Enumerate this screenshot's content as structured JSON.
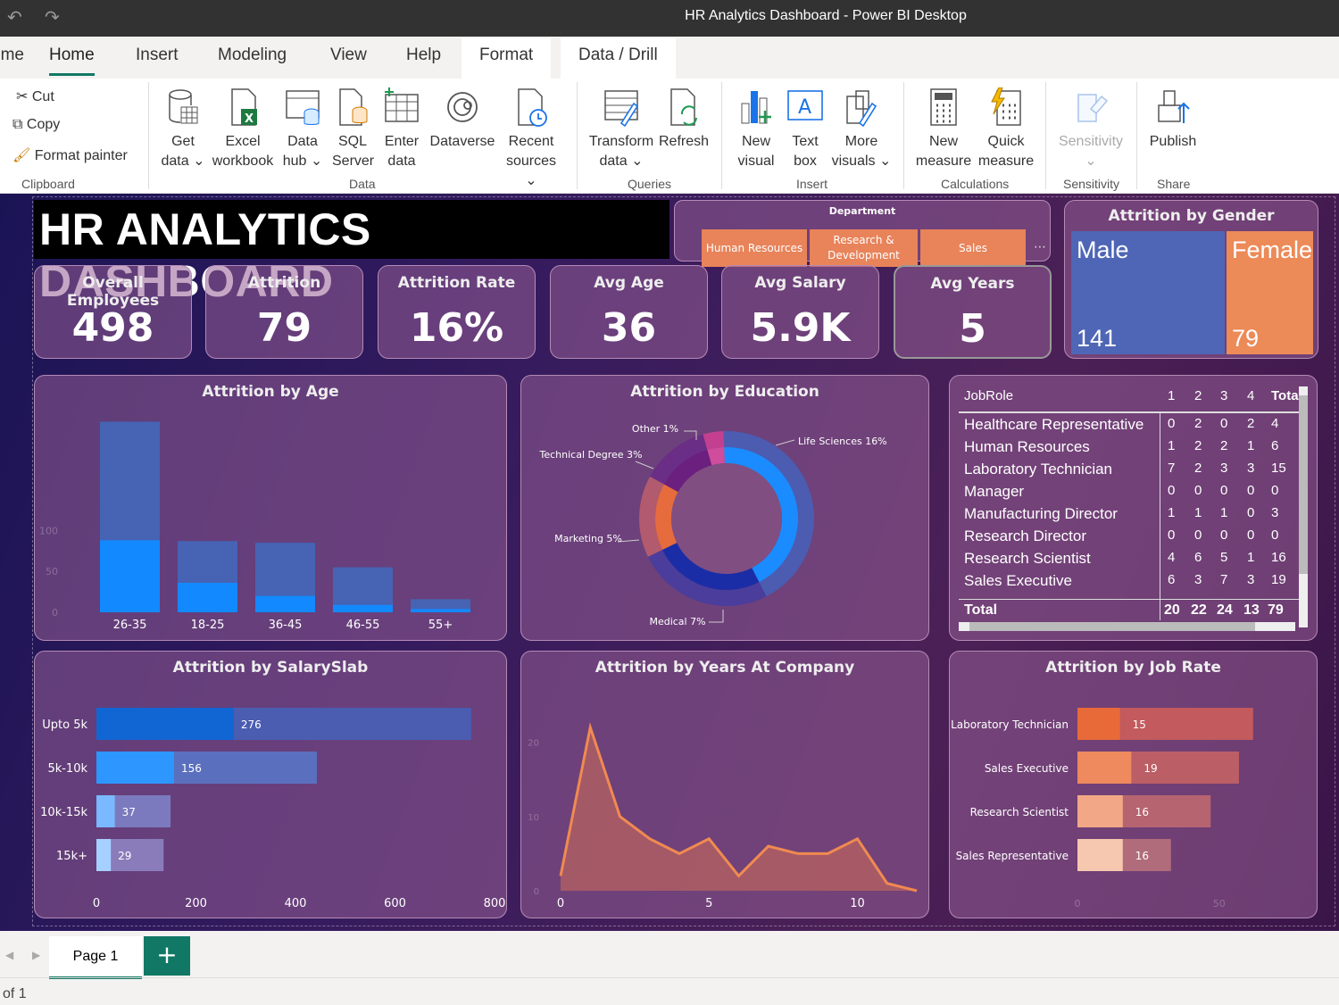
{
  "window": {
    "title": "HR Analytics Dashboard - Power BI Desktop"
  },
  "tabs": [
    "ome",
    "Home",
    "Insert",
    "Modeling",
    "View",
    "Help",
    "Format",
    "Data / Drill"
  ],
  "ribbon": {
    "clipboard": {
      "cut": "Cut",
      "copy": "Copy",
      "format_painter": "Format painter",
      "group": "Clipboard"
    },
    "data": {
      "get_data": [
        "Get",
        "data"
      ],
      "excel": [
        "Excel",
        "workbook"
      ],
      "data_hub": [
        "Data",
        "hub"
      ],
      "sql": [
        "SQL",
        "Server"
      ],
      "enter": [
        "Enter",
        "data"
      ],
      "dataverse": "Dataverse",
      "recent": [
        "Recent",
        "sources"
      ],
      "group": "Data"
    },
    "queries": {
      "transform": [
        "Transform",
        "data"
      ],
      "refresh": "Refresh",
      "group": "Queries"
    },
    "insert": {
      "new_visual": [
        "New",
        "visual"
      ],
      "text_box": [
        "Text",
        "box"
      ],
      "more": [
        "More",
        "visuals"
      ],
      "group": "Insert"
    },
    "calculations": {
      "new_measure": [
        "New",
        "measure"
      ],
      "quick_measure": [
        "Quick",
        "measure"
      ],
      "group": "Calculations"
    },
    "sensitivity": {
      "label": "Sensitivity",
      "group": "Sensitivity"
    },
    "share": {
      "publish": "Publish",
      "group": "Share"
    }
  },
  "dashboard": {
    "title": "HR ANALYTICS DASHBOARD",
    "slicer": {
      "title": "Department",
      "options": [
        "Human Resources",
        "Research & Development",
        "Sales"
      ]
    },
    "kpis": [
      {
        "label": "Overall Employees",
        "value": "498"
      },
      {
        "label": "Attrition",
        "value": "79"
      },
      {
        "label": "Attrition Rate",
        "value": "16%"
      },
      {
        "label": "Avg Age",
        "value": "36"
      },
      {
        "label": "Avg Salary",
        "value": "5.9K"
      },
      {
        "label": "Avg Years",
        "value": "5"
      }
    ],
    "gender": {
      "title": "Attrition by Gender",
      "male_label": "Male",
      "female_label": "Female",
      "male_value": "141",
      "female_value": "79"
    },
    "jobrole_table": {
      "header": [
        "JobRole",
        "1",
        "2",
        "3",
        "4",
        "Tota"
      ],
      "rows": [
        [
          "Healthcare Representative",
          "0",
          "2",
          "0",
          "2",
          "4"
        ],
        [
          "Human Resources",
          "1",
          "2",
          "2",
          "1",
          "6"
        ],
        [
          "Laboratory Technician",
          "7",
          "2",
          "3",
          "3",
          "15"
        ],
        [
          "Manager",
          "0",
          "0",
          "0",
          "0",
          "0"
        ],
        [
          "Manufacturing Director",
          "1",
          "1",
          "1",
          "0",
          "3"
        ],
        [
          "Research Director",
          "0",
          "0",
          "0",
          "0",
          "0"
        ],
        [
          "Research Scientist",
          "4",
          "6",
          "5",
          "1",
          "16"
        ],
        [
          "Sales Executive",
          "6",
          "3",
          "7",
          "3",
          "19"
        ]
      ],
      "total": [
        "Total",
        "20",
        "22",
        "24",
        "13",
        "79"
      ]
    }
  },
  "chart_data": [
    {
      "type": "bar",
      "title": "Attrition by Age",
      "categories": [
        "26-35",
        "18-25",
        "36-45",
        "46-55",
        "55+"
      ],
      "series": [
        {
          "name": "Total",
          "values": [
            233,
            87,
            85,
            55,
            16
          ]
        },
        {
          "name": "Attrition",
          "values": [
            88,
            36,
            20,
            9,
            4
          ]
        }
      ],
      "ytick_labels": [
        "0",
        "50",
        "100"
      ],
      "ylim": [
        0,
        240
      ]
    },
    {
      "type": "pie",
      "title": "Attrition by Education",
      "slices": [
        {
          "label": "Life Sciences 16%",
          "value": 16
        },
        {
          "label": "Medical 7%",
          "value": 7
        },
        {
          "label": "Marketing 5%",
          "value": 5
        },
        {
          "label": "Technical Degree 3%",
          "value": 3
        },
        {
          "label": "Other 1%",
          "value": 1
        }
      ]
    },
    {
      "type": "bar",
      "title": "Attrition by SalarySlab",
      "orientation": "horizontal",
      "categories": [
        "Upto 5k",
        "5k-10k",
        "10k-15k",
        "15k+"
      ],
      "series": [
        {
          "name": "Total",
          "values": [
            753,
            443,
            149,
            135
          ]
        },
        {
          "name": "Attrition",
          "values": [
            276,
            156,
            37,
            29
          ]
        }
      ],
      "xticks": [
        "0",
        "200",
        "400",
        "600",
        "800"
      ],
      "xlim": [
        0,
        800
      ]
    },
    {
      "type": "area",
      "title": "Attrition by Years At Company",
      "x": [
        0,
        1,
        2,
        3,
        4,
        5,
        6,
        7,
        8,
        9,
        10,
        11,
        12
      ],
      "values": [
        2,
        22,
        10,
        7,
        5,
        7,
        2,
        6,
        5,
        5,
        7,
        1,
        0
      ],
      "xticks": [
        "0",
        "5",
        "10"
      ],
      "ytick_labels": [
        "0",
        "10",
        "20"
      ],
      "xlim": [
        0,
        12
      ],
      "ylim": [
        0,
        25
      ]
    },
    {
      "type": "bar",
      "title": "Attrition by Job Rate",
      "orientation": "horizontal",
      "categories": [
        "Laboratory Technician",
        "Sales Executive",
        "Research Scientist",
        "Sales Representative"
      ],
      "series": [
        {
          "name": "Total",
          "values": [
            62,
            57,
            47,
            33
          ]
        },
        {
          "name": "Attrition",
          "values": [
            15,
            19,
            16,
            16
          ]
        }
      ],
      "xtick_labels": [
        "0",
        "50"
      ],
      "xlim": [
        0,
        63
      ]
    }
  ],
  "bottom": {
    "page_tab": "Page 1",
    "add": "+",
    "status": "of 1"
  },
  "colors": {
    "accent": "#117865",
    "bar_dark": "#4863b5",
    "bar_light": "#1289ff",
    "orange": "#e8835a"
  }
}
